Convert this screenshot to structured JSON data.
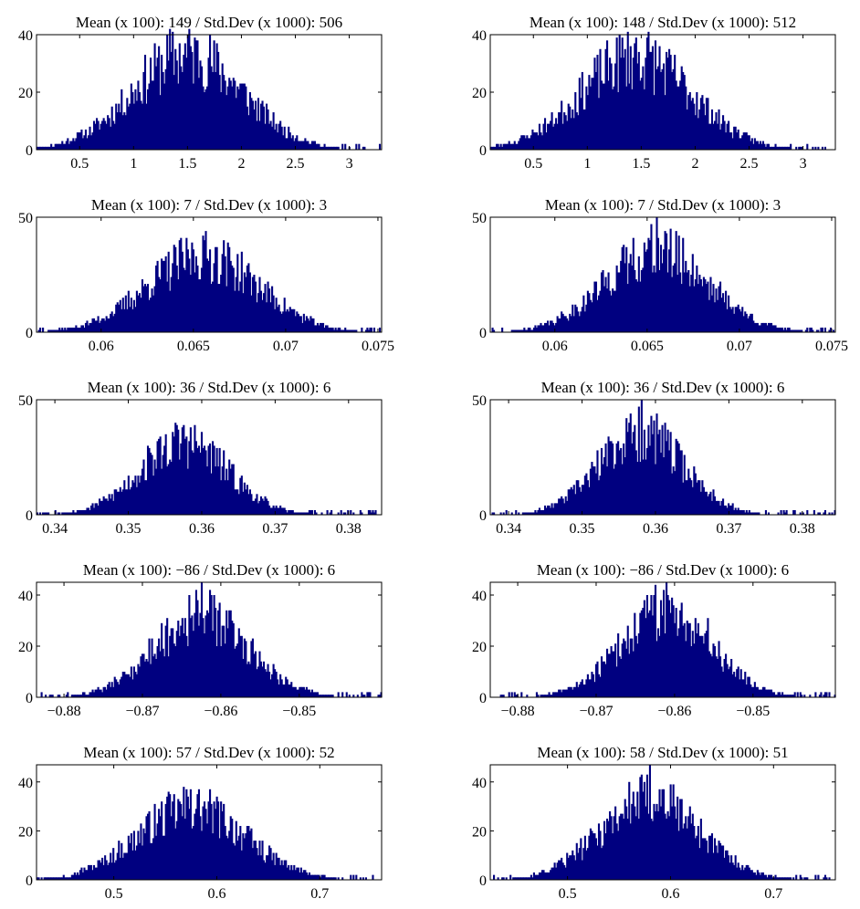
{
  "colors": {
    "bar": "#000080",
    "axis": "#000000",
    "background": "#ffffff"
  },
  "chart_data": [
    {
      "type": "bar",
      "title": "Mean (x 100): 149 / Std.Dev (x 1000): 506",
      "xlim": [
        0.1,
        3.3
      ],
      "ylim": [
        0,
        40
      ],
      "xticks": [
        0.5,
        1,
        1.5,
        2,
        2.5,
        3
      ],
      "xtick_labels": [
        "0.5",
        "1",
        "1.5",
        "2",
        "2.5",
        "3"
      ],
      "yticks": [
        0,
        20,
        40
      ],
      "ytick_labels": [
        "0",
        "20",
        "40"
      ],
      "distribution": {
        "mean": 1.5,
        "sd": 0.506,
        "peak": 34,
        "max": 40,
        "bins": 250,
        "seed": 11
      }
    },
    {
      "type": "bar",
      "title": "Mean (x 100): 148 / Std.Dev (x 1000): 512",
      "xlim": [
        0.1,
        3.3
      ],
      "ylim": [
        0,
        40
      ],
      "xticks": [
        0.5,
        1,
        1.5,
        2,
        2.5,
        3
      ],
      "xtick_labels": [
        "0.5",
        "1",
        "1.5",
        "2",
        "2.5",
        "3"
      ],
      "yticks": [
        0,
        20,
        40
      ],
      "ytick_labels": [
        "0",
        "20",
        "40"
      ],
      "distribution": {
        "mean": 1.45,
        "sd": 0.512,
        "peak": 33,
        "max": 39,
        "bins": 250,
        "seed": 23
      }
    },
    {
      "type": "bar",
      "title": "Mean (x 100): 7 / Std.Dev (x 1000): 3",
      "xlim": [
        0.0565,
        0.0752
      ],
      "ylim": [
        0,
        50
      ],
      "xticks": [
        0.06,
        0.065,
        0.07,
        0.075
      ],
      "xtick_labels": [
        "0.06",
        "0.065",
        "0.07",
        "0.075"
      ],
      "yticks": [
        0,
        50
      ],
      "ytick_labels": [
        "0",
        "50"
      ],
      "distribution": {
        "mean": 0.0655,
        "sd": 0.003,
        "peak": 34,
        "max": 42,
        "bins": 250,
        "seed": 37
      }
    },
    {
      "type": "bar",
      "title": "Mean (x 100): 7 / Std.Dev (x 1000): 3",
      "xlim": [
        0.0565,
        0.0752
      ],
      "ylim": [
        0,
        50
      ],
      "xticks": [
        0.06,
        0.065,
        0.07,
        0.075
      ],
      "xtick_labels": [
        "0.06",
        "0.065",
        "0.07",
        "0.075"
      ],
      "yticks": [
        0,
        50
      ],
      "ytick_labels": [
        "0",
        "50"
      ],
      "distribution": {
        "mean": 0.0655,
        "sd": 0.0028,
        "peak": 36,
        "max": 50,
        "bins": 250,
        "seed": 41
      }
    },
    {
      "type": "bar",
      "title": "Mean (x 100): 36 / Std.Dev (x 1000): 6",
      "xlim": [
        0.3375,
        0.3845
      ],
      "ylim": [
        0,
        50
      ],
      "xticks": [
        0.34,
        0.35,
        0.36,
        0.37,
        0.38
      ],
      "xtick_labels": [
        "0.34",
        "0.35",
        "0.36",
        "0.37",
        "0.38"
      ],
      "yticks": [
        0,
        50
      ],
      "ytick_labels": [
        "0",
        "50"
      ],
      "distribution": {
        "mean": 0.3575,
        "sd": 0.006,
        "peak": 32,
        "max": 39,
        "bins": 250,
        "seed": 53
      }
    },
    {
      "type": "bar",
      "title": "Mean (x 100): 36 / Std.Dev (x 1000): 6",
      "xlim": [
        0.3375,
        0.3845
      ],
      "ylim": [
        0,
        50
      ],
      "xticks": [
        0.34,
        0.35,
        0.36,
        0.37,
        0.38
      ],
      "xtick_labels": [
        "0.34",
        "0.35",
        "0.36",
        "0.37",
        "0.38"
      ],
      "yticks": [
        0,
        50
      ],
      "ytick_labels": [
        "0",
        "50"
      ],
      "distribution": {
        "mean": 0.358,
        "sd": 0.0058,
        "peak": 36,
        "max": 50,
        "bins": 250,
        "seed": 67
      }
    },
    {
      "type": "bar",
      "title": "Mean (x 100): −86 / Std.Dev (x 1000): 6",
      "xlim": [
        -0.8835,
        -0.8395
      ],
      "ylim": [
        0,
        45
      ],
      "xticks": [
        -0.88,
        -0.87,
        -0.86,
        -0.85
      ],
      "xtick_labels": [
        "−0.88",
        "−0.87",
        "−0.86",
        "−0.85"
      ],
      "yticks": [
        0,
        20,
        40
      ],
      "ytick_labels": [
        "0",
        "20",
        "40"
      ],
      "distribution": {
        "mean": -0.8625,
        "sd": 0.006,
        "peak": 33,
        "max": 45,
        "bins": 250,
        "seed": 79
      }
    },
    {
      "type": "bar",
      "title": "Mean (x 100): −86 / Std.Dev (x 1000): 6",
      "xlim": [
        -0.8835,
        -0.8395
      ],
      "ylim": [
        0,
        45
      ],
      "xticks": [
        -0.88,
        -0.87,
        -0.86,
        -0.85
      ],
      "xtick_labels": [
        "−0.88",
        "−0.87",
        "−0.86",
        "−0.85"
      ],
      "yticks": [
        0,
        20,
        40
      ],
      "ytick_labels": [
        "0",
        "20",
        "40"
      ],
      "distribution": {
        "mean": -0.861,
        "sd": 0.0058,
        "peak": 35,
        "max": 45,
        "bins": 250,
        "seed": 83
      }
    },
    {
      "type": "bar",
      "title": "Mean (x 100): 57 / Std.Dev (x 1000): 52",
      "xlim": [
        0.425,
        0.76
      ],
      "ylim": [
        0,
        47
      ],
      "xticks": [
        0.5,
        0.6,
        0.7
      ],
      "xtick_labels": [
        "0.5",
        "0.6",
        "0.7"
      ],
      "yticks": [
        0,
        20,
        40
      ],
      "ytick_labels": [
        "0",
        "20",
        "40"
      ],
      "distribution": {
        "mean": 0.575,
        "sd": 0.052,
        "peak": 30,
        "max": 37,
        "bins": 250,
        "seed": 97
      }
    },
    {
      "type": "bar",
      "title": "Mean (x 100): 58 / Std.Dev (x 1000): 51",
      "xlim": [
        0.425,
        0.76
      ],
      "ylim": [
        0,
        47
      ],
      "xticks": [
        0.5,
        0.6,
        0.7
      ],
      "xtick_labels": [
        "0.5",
        "0.6",
        "0.7"
      ],
      "yticks": [
        0,
        20,
        40
      ],
      "ytick_labels": [
        "0",
        "20",
        "40"
      ],
      "distribution": {
        "mean": 0.58,
        "sd": 0.048,
        "peak": 34,
        "max": 47,
        "bins": 250,
        "seed": 101
      }
    }
  ]
}
